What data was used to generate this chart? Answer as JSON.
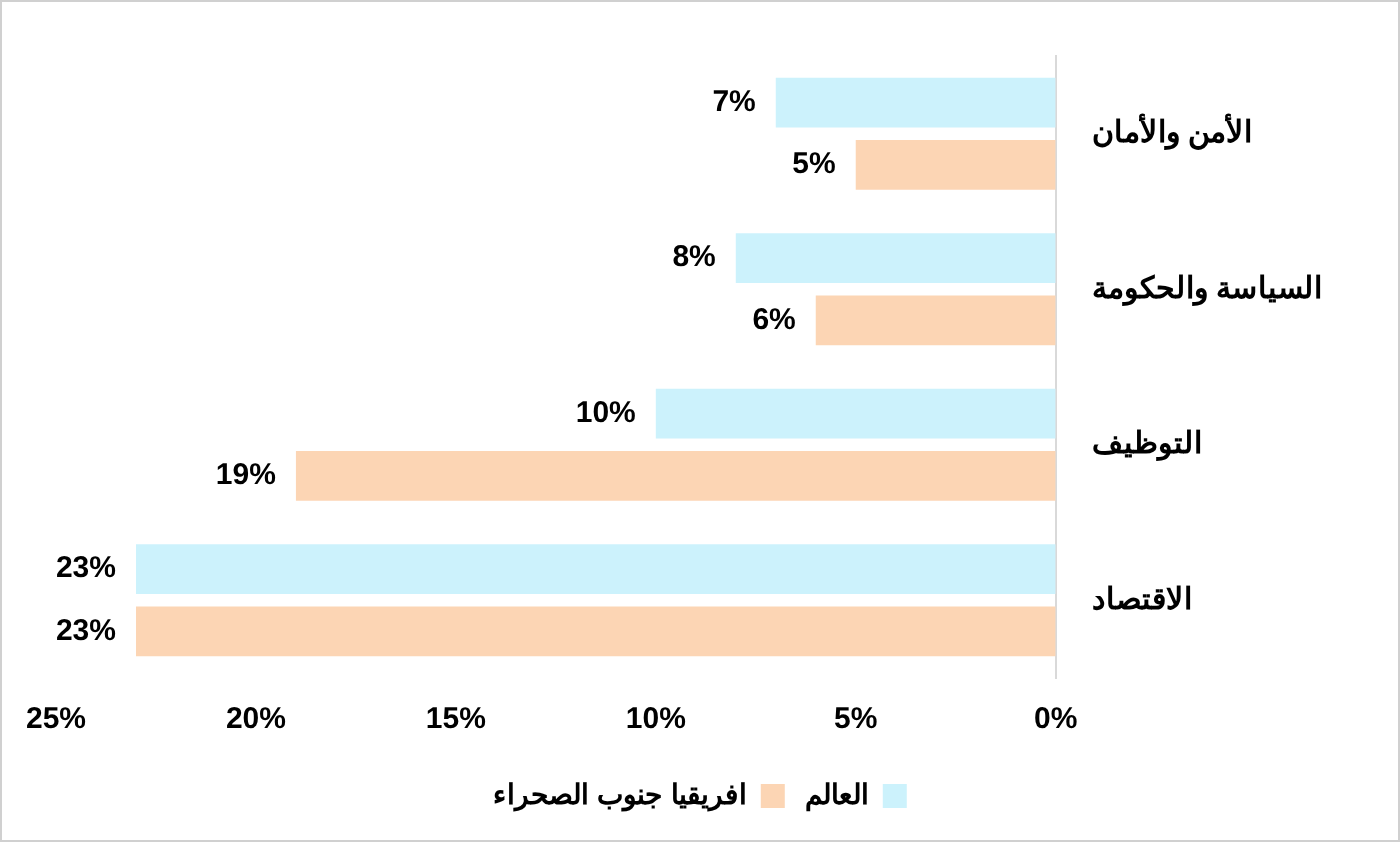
{
  "chart_data": {
    "type": "bar",
    "orientation": "horizontal",
    "categories": [
      "الأمن والأمان",
      "السياسة والحكومة",
      "التوظيف",
      "الاقتصاد"
    ],
    "series": [
      {
        "name": "العالم",
        "color": "#ccf2fc",
        "values": [
          7,
          8,
          10,
          23
        ],
        "value_labels": [
          "7%",
          "8%",
          "10%",
          "23%"
        ]
      },
      {
        "name": "افريقيا جنوب الصحراء",
        "color": "#fcd5b4",
        "values": [
          5,
          6,
          19,
          23
        ],
        "value_labels": [
          "5%",
          "6%",
          "19%",
          "23%"
        ]
      }
    ],
    "xlim": [
      25,
      0
    ],
    "xticks": [
      {
        "value": 25,
        "label": "25%"
      },
      {
        "value": 20,
        "label": "20%"
      },
      {
        "value": 15,
        "label": "15%"
      },
      {
        "value": 10,
        "label": "10%"
      },
      {
        "value": 5,
        "label": "5%"
      },
      {
        "value": 0,
        "label": "0%"
      }
    ],
    "grid": false,
    "legend": "bottom"
  }
}
